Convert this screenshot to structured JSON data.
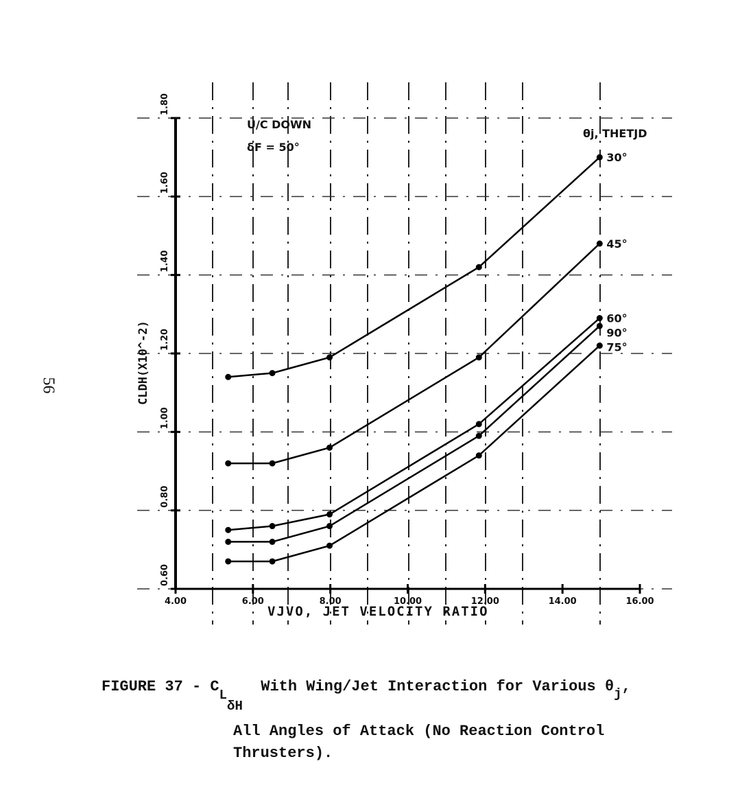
{
  "page_number": "56",
  "chart_data": {
    "type": "line",
    "title": "",
    "xlabel": "VJVO, JET VELOCITY RATIO",
    "ylabel": "CLDH(X10^-2)",
    "xlim": [
      4,
      16
    ],
    "ylim": [
      0.6,
      1.8
    ],
    "xticks": [
      "4.00",
      "6.00",
      "8.00",
      "10.00",
      "12.00",
      "14.00",
      "16.00"
    ],
    "xtick_values": [
      4,
      6,
      8,
      10,
      12,
      14,
      16
    ],
    "yticks": [
      "0.60",
      "0.80",
      "1.00",
      "1.20",
      "1.40",
      "1.60",
      "1.80"
    ],
    "ytick_values": [
      0.6,
      0.8,
      1.0,
      1.2,
      1.4,
      1.6,
      1.8
    ],
    "grid": true,
    "annotations": {
      "condition": "U/C DOWN",
      "flap": "δF = 50°",
      "legend_title": "θj, THETJD"
    },
    "legend_placement": "right-end-of-lines",
    "x": [
      5.36,
      6.5,
      7.98,
      11.84,
      14.96
    ],
    "series": [
      {
        "name": "30°",
        "values": [
          1.14,
          1.15,
          1.19,
          1.42,
          1.7
        ]
      },
      {
        "name": "45°",
        "values": [
          0.92,
          0.92,
          0.96,
          1.19,
          1.48
        ]
      },
      {
        "name": "60°",
        "values": [
          0.75,
          0.76,
          0.79,
          1.02,
          1.29
        ]
      },
      {
        "name": "90°",
        "values": [
          0.72,
          0.72,
          0.76,
          0.99,
          1.27
        ]
      },
      {
        "name": "75°",
        "values": [
          0.67,
          0.67,
          0.71,
          0.94,
          1.22
        ]
      }
    ]
  },
  "caption": {
    "line1_prefix": "FIGURE 37 - C",
    "sub_L": "L",
    "sub_dH": "δH",
    "line1_suffix": "With Wing/Jet Interaction for Various θ",
    "sub_j": "j",
    "line1_end": ",",
    "line2": "All Angles of Attack (No Reaction Control",
    "line3": "Thrusters)."
  }
}
